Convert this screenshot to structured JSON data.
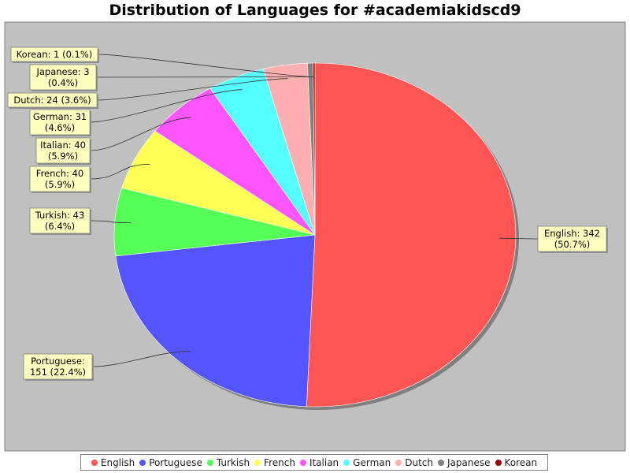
{
  "chart_data": {
    "type": "pie",
    "title": "Distribution of Languages for #academiakidscd9",
    "start_angle_deg": 90,
    "direction": "clockwise",
    "legend_position": "bottom",
    "slices": [
      {
        "name": "English",
        "value": 342,
        "percent": "50.7%",
        "color": "#ff5555",
        "label_lines": [
          "English: 342",
          "(50.7%)"
        ]
      },
      {
        "name": "Portuguese",
        "value": 151,
        "percent": "22.4%",
        "color": "#5555ff",
        "label_lines": [
          "Portuguese:",
          "151 (22.4%)"
        ]
      },
      {
        "name": "Turkish",
        "value": 43,
        "percent": "6.4%",
        "color": "#55ff55",
        "label_lines": [
          "Turkish: 43",
          "(6.4%)"
        ]
      },
      {
        "name": "French",
        "value": 40,
        "percent": "5.9%",
        "color": "#ffff55",
        "label_lines": [
          "French: 40",
          "(5.9%)"
        ]
      },
      {
        "name": "Italian",
        "value": 40,
        "percent": "5.9%",
        "color": "#ff55ff",
        "label_lines": [
          "Italian: 40",
          "(5.9%)"
        ]
      },
      {
        "name": "German",
        "value": 31,
        "percent": "4.6%",
        "color": "#55ffff",
        "label_lines": [
          "German: 31",
          "(4.6%)"
        ]
      },
      {
        "name": "Dutch",
        "value": 24,
        "percent": "3.6%",
        "color": "#ffafaf",
        "label_lines": [
          "Dutch: 24 (3.6%)"
        ]
      },
      {
        "name": "Japanese",
        "value": 3,
        "percent": "0.4%",
        "color": "#808080",
        "label_lines": [
          "Japanese: 3",
          "(0.4%)"
        ]
      },
      {
        "name": "Korean",
        "value": 1,
        "percent": "0.1%",
        "color": "#a00000",
        "label_lines": [
          "Korean: 1 (0.1%)"
        ]
      }
    ],
    "plot_background": "#c0c0c0",
    "label_background": "#ffffc0"
  }
}
